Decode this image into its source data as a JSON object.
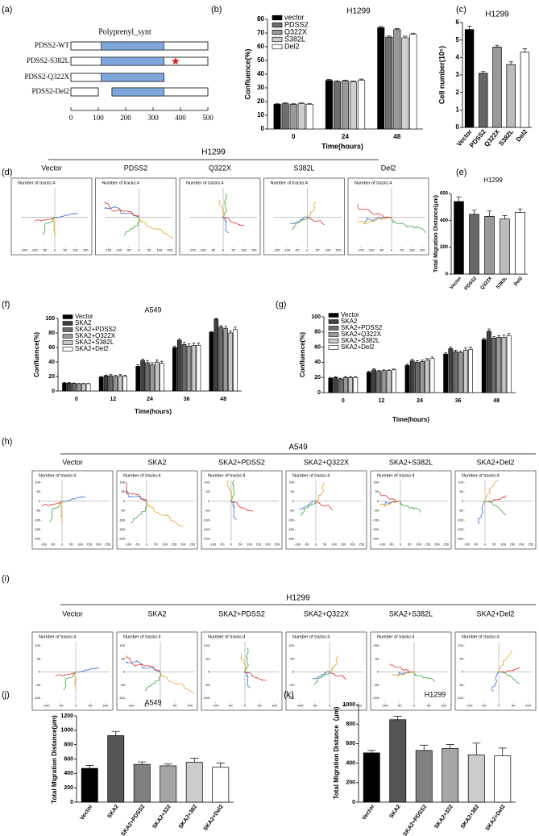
{
  "chart_data": [
    {
      "type": "domain",
      "panel_label": "(a)",
      "domain_label": "Polyprenyl_synt",
      "xlim": [
        0,
        500
      ],
      "xticks": [
        0,
        100,
        200,
        300,
        400,
        500
      ],
      "domain_color": "#7fa7dc",
      "proteins": [
        {
          "name": "PDSS2-WT",
          "segments": [
            [
              0,
              500
            ]
          ],
          "domain": [
            110,
            340
          ]
        },
        {
          "name": "PDSS2-S382L",
          "segments": [
            [
              0,
              500
            ]
          ],
          "domain": [
            110,
            340
          ],
          "mutation": 382
        },
        {
          "name": "PDSS2-Q322X",
          "segments": [
            [
              0,
              340
            ]
          ],
          "domain": [
            110,
            340
          ]
        },
        {
          "name": "PDSS2-Del2",
          "segments": [
            [
              0,
              100
            ],
            [
              150,
              500
            ]
          ],
          "domain": [
            150,
            340
          ]
        }
      ]
    },
    {
      "type": "bar",
      "panel_label": "(b)",
      "title": "H1299",
      "y_label": "Confluence(%)",
      "x_label": "Time(hours)",
      "legend": "upper left",
      "categories": [
        "0",
        "24",
        "48"
      ],
      "ylim": [
        0,
        80
      ],
      "yticks": [
        0,
        10,
        20,
        30,
        40,
        50,
        60,
        70,
        80
      ],
      "series": [
        {
          "name": "vector",
          "color": "#000000",
          "values": [
            18,
            35.5,
            74
          ],
          "errors": [
            0.4,
            0.6,
            0.9
          ]
        },
        {
          "name": "PDSS2",
          "color": "#6e6e6e",
          "values": [
            18.5,
            34.5,
            67
          ],
          "errors": [
            0.5,
            0.7,
            0.8
          ]
        },
        {
          "name": "Q322X",
          "color": "#9a9a9a",
          "values": [
            18,
            35,
            72.5
          ],
          "errors": [
            0.4,
            0.6,
            0.8
          ]
        },
        {
          "name": "S382L",
          "color": "#cfcfcf",
          "values": [
            18.5,
            34.5,
            66.5
          ],
          "errors": [
            0.5,
            0.6,
            1.2
          ]
        },
        {
          "name": "Del2",
          "color": "#ffffff",
          "values": [
            18,
            35.5,
            69
          ],
          "errors": [
            0.5,
            0.9,
            0.9
          ]
        }
      ]
    },
    {
      "type": "bar",
      "panel_label": "(c)",
      "title": "H1299",
      "y_label": "Cell number(10⁵)",
      "categories": [
        "Vector",
        "PDSS2",
        "Q322X",
        "S382L",
        "Del2"
      ],
      "values": [
        5.6,
        3.1,
        4.6,
        3.6,
        4.3
      ],
      "errors": [
        0.2,
        0.1,
        0.1,
        0.15,
        0.2
      ],
      "colors": [
        "#000000",
        "#666666",
        "#999999",
        "#bbbbbb",
        "#ffffff"
      ],
      "ylim": [
        0,
        6
      ],
      "yticks": [
        0,
        1,
        2,
        3,
        4,
        5,
        6
      ]
    },
    {
      "type": "tracks",
      "panel_label": "(d)",
      "title": "H1299",
      "panels": [
        "Vector",
        "PDSS2",
        "Q322X",
        "S382L",
        "Del2"
      ],
      "annotation": "Number of tracks:4",
      "xlim": [
        -165,
        165
      ],
      "ylim": [
        -165,
        165
      ],
      "xticks": [
        -150,
        -100,
        -50,
        0,
        50,
        100,
        150
      ],
      "yticks": [],
      "track_colors": [
        "#3a6fd6",
        "#e0352b",
        "#3aa53a",
        "#e8a020"
      ]
    },
    {
      "type": "bar",
      "panel_label": "(e)",
      "title": "H1299",
      "y_label": "Total Migration Distance(μm)",
      "categories": [
        "Vector",
        "PDSS2",
        "Q322X",
        "S382L",
        "Del2"
      ],
      "values": [
        540,
        445,
        430,
        410,
        460
      ],
      "errors": [
        35,
        30,
        40,
        25,
        25
      ],
      "colors": [
        "#000000",
        "#666666",
        "#999999",
        "#bbbbbb",
        "#ffffff"
      ],
      "ylim": [
        0,
        600
      ],
      "yticks": [
        0,
        200,
        400,
        600
      ]
    },
    {
      "type": "bar",
      "panel_label": "(f)",
      "title": "A549",
      "y_label": "Confluence(%)",
      "x_label": "Time(hours)",
      "legend": "upper left",
      "categories": [
        "0",
        "12",
        "24",
        "36",
        "48"
      ],
      "ylim": [
        0,
        100
      ],
      "yticks": [
        0,
        20,
        40,
        60,
        80,
        100
      ],
      "series": [
        {
          "name": "Vector",
          "color": "#000000",
          "values": [
            11,
            19,
            34,
            60,
            81
          ],
          "errors": [
            0.5,
            1,
            2,
            2,
            1
          ]
        },
        {
          "name": "SKA2",
          "color": "#404040",
          "values": [
            11,
            21,
            42,
            70,
            99
          ],
          "errors": [
            0.5,
            1,
            2,
            2,
            1
          ]
        },
        {
          "name": "SKA2+PDSS2",
          "color": "#6b6b6b",
          "values": [
            10.5,
            21,
            39,
            64,
            88
          ],
          "errors": [
            0.5,
            1.5,
            3,
            3,
            2
          ]
        },
        {
          "name": "SKA2+Q322X",
          "color": "#999999",
          "values": [
            10,
            20,
            36,
            62,
            86
          ],
          "errors": [
            0.5,
            1.5,
            3,
            3,
            3
          ]
        },
        {
          "name": "SKA2+S382L",
          "color": "#c8c8c8",
          "values": [
            10,
            21,
            40,
            63,
            80
          ],
          "errors": [
            0.5,
            1.5,
            3,
            3,
            3
          ]
        },
        {
          "name": "SKA2+Del2",
          "color": "#ffffff",
          "values": [
            10,
            20,
            38,
            63,
            85
          ],
          "errors": [
            0.5,
            1.5,
            3,
            3,
            3
          ]
        }
      ]
    },
    {
      "type": "bar",
      "panel_label": "(g)",
      "y_label": "Confluence(%)",
      "x_label": "Time(hours)",
      "legend": "upper left",
      "categories": [
        "0",
        "12",
        "24",
        "36",
        "48"
      ],
      "ylim": [
        0,
        100
      ],
      "yticks": [
        0,
        20,
        40,
        60,
        80,
        100
      ],
      "series": [
        {
          "name": "Vector",
          "color": "#000000",
          "values": [
            19,
            27,
            36,
            51,
            70
          ],
          "errors": [
            1,
            1,
            1.5,
            2,
            2
          ]
        },
        {
          "name": "SKA2",
          "color": "#404040",
          "values": [
            20,
            30,
            42,
            58,
            81
          ],
          "errors": [
            1,
            1.5,
            2,
            2,
            3
          ]
        },
        {
          "name": "SKA2+PDSS2",
          "color": "#6b6b6b",
          "values": [
            18,
            28,
            40,
            54,
            72
          ],
          "errors": [
            1,
            1,
            2,
            2,
            2
          ]
        },
        {
          "name": "SKA2+Q322X",
          "color": "#999999",
          "values": [
            20,
            29,
            41,
            53,
            73
          ],
          "errors": [
            1,
            1,
            2,
            2,
            2
          ]
        },
        {
          "name": "SKA2+S382L",
          "color": "#c8c8c8",
          "values": [
            20,
            29,
            43,
            56,
            73
          ],
          "errors": [
            1,
            1,
            2,
            3,
            3
          ]
        },
        {
          "name": "SKA2+Del2",
          "color": "#ffffff",
          "values": [
            20,
            30,
            45,
            57,
            75
          ],
          "errors": [
            1,
            1,
            2,
            3,
            3
          ]
        }
      ]
    },
    {
      "type": "tracks",
      "panel_label": "(h)",
      "title": "A549",
      "panels": [
        "Vector",
        "SKA2",
        "SKA2+PDSS2",
        "SKA2+Q322X",
        "SKA2+S382L",
        "SKA2+Del2"
      ],
      "annotation": "Number of tracks:4",
      "xlim": [
        -110,
        260
      ],
      "ylim": [
        -210,
        110
      ],
      "xticks": [
        -100,
        -50,
        0,
        50,
        100,
        150,
        200,
        250
      ],
      "yticks": [
        -200,
        -150,
        -100,
        -50,
        0,
        50,
        100
      ],
      "track_colors": [
        "#3a6fd6",
        "#e0352b",
        "#3aa53a",
        "#e8a020"
      ]
    },
    {
      "type": "tracks",
      "panel_label": "(i)",
      "title": "H1299",
      "panels": [
        "Vector",
        "SKA2",
        "SKA2+PDSS2",
        "SKA2+Q322X",
        "SKA2+S382L",
        "SKA2+Del2"
      ],
      "annotation": "Number of tracks:4",
      "xlim": [
        -115,
        115
      ],
      "ylim": [
        -115,
        115
      ],
      "xticks": [
        -100,
        -50,
        0,
        50,
        100
      ],
      "yticks": [
        -100,
        -50,
        0,
        50,
        100
      ],
      "track_colors": [
        "#3a6fd6",
        "#e0352b",
        "#3aa53a",
        "#e8a020"
      ]
    },
    {
      "type": "bar",
      "panel_label": "(j)",
      "title": "A549",
      "y_label": "Total Migration Distance(μm)",
      "categories": [
        "Vector",
        "SKA2",
        "SKA2+PDSS2",
        "SKA2+322",
        "SKA2+382",
        "SKA2+Del2"
      ],
      "values": [
        470,
        925,
        525,
        505,
        555,
        485
      ],
      "errors": [
        40,
        60,
        35,
        25,
        55,
        60
      ],
      "colors": [
        "#000000",
        "#555555",
        "#808080",
        "#a6a6a6",
        "#cccccc",
        "#ffffff"
      ],
      "ylim": [
        0,
        1200
      ],
      "yticks": [
        0,
        200,
        400,
        600,
        800,
        1000,
        1200
      ]
    },
    {
      "type": "bar",
      "panel_label": "(k)",
      "title": "H1299",
      "y_label": "Total Migration Distance（μm)",
      "categories": [
        "Vector",
        "SKA2",
        "SKA2+PDSS2",
        "SKA2+322",
        "SKA2+382",
        "SKA2+Del2"
      ],
      "values": [
        505,
        845,
        530,
        550,
        485,
        475
      ],
      "errors": [
        25,
        35,
        55,
        40,
        120,
        80
      ],
      "colors": [
        "#000000",
        "#555555",
        "#808080",
        "#a6a6a6",
        "#cccccc",
        "#ffffff"
      ],
      "ylim": [
        0,
        1000
      ],
      "yticks": [
        0,
        200,
        400,
        600,
        800,
        1000
      ]
    }
  ]
}
